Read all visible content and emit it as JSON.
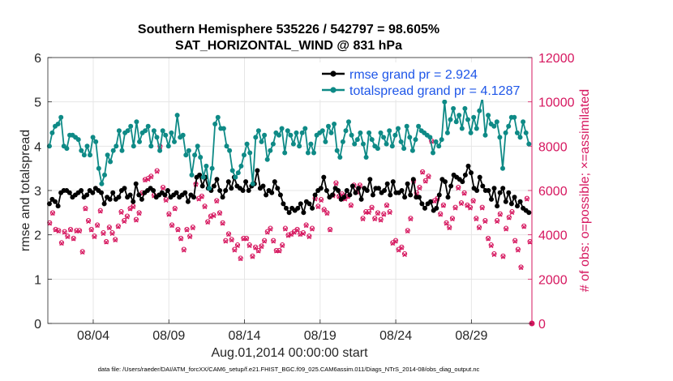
{
  "chart_data": {
    "type": "line",
    "title": "Southern Hemisphere 535226 / 542797 = 98.605%",
    "subtitle": "SAT_HORIZONTAL_WIND @ 831 hPa",
    "xlabel": "Aug.01,2014 00:00:00 start",
    "ylabel": "rmse and totalspread",
    "ylabel_right": "# of obs: o=possible; ×=assimilated",
    "xlim": [
      0,
      32
    ],
    "ylim": [
      0,
      6
    ],
    "ylim_right": [
      0,
      12000
    ],
    "xticks": [
      3,
      8,
      13,
      18,
      23,
      28
    ],
    "xtick_labels": [
      "08/04",
      "08/09",
      "08/14",
      "08/19",
      "08/24",
      "08/29"
    ],
    "yticks": [
      "0",
      "1",
      "2",
      "3",
      "4",
      "5",
      "6"
    ],
    "yticks_right": [
      "0",
      "2000",
      "4000",
      "6000",
      "8000",
      "10000",
      "12000"
    ],
    "footnote": "data file: /Users/raeder/DAI/ATM_forcXX/CAM6_setup/f.e21.FHIST_BGC.f09_025.CAM6assim.011/Diags_NTrS_2014-08/obs_diag_output.nc",
    "legend_position": "top-right",
    "series": [
      {
        "name": "rmse grand pr = 2.924",
        "color": "#000000",
        "values": [
          2.7,
          2.8,
          2.75,
          2.65,
          2.95,
          3.0,
          3.0,
          2.95,
          2.85,
          2.9,
          2.95,
          3.0,
          2.85,
          2.9,
          3.0,
          2.95,
          3.05,
          3.0,
          2.95,
          2.7,
          2.85,
          2.8,
          2.95,
          2.8,
          2.85,
          3.0,
          3.05,
          2.85,
          2.9,
          2.75,
          3.15,
          2.9,
          2.8,
          2.95,
          3.0,
          3.05,
          3.0,
          2.85,
          2.9,
          2.95,
          2.9,
          3.0,
          2.85,
          2.9,
          2.95,
          2.85,
          2.9,
          2.95,
          2.75,
          2.9,
          2.85,
          3.3,
          3.35,
          3.1,
          3.3,
          3.05,
          3.0,
          3.1,
          3.25,
          3.0,
          2.85,
          3.0,
          3.2,
          3.05,
          3.3,
          3.1,
          3.05,
          3.0,
          3.2,
          3.0,
          3.1,
          3.15,
          3.45,
          3.05,
          3.1,
          2.9,
          3.0,
          2.95,
          3.2,
          3.05,
          2.9,
          2.7,
          2.6,
          2.5,
          2.6,
          2.55,
          2.6,
          2.7,
          2.5,
          2.75,
          2.7,
          2.6,
          2.9,
          3.0,
          3.05,
          3.3,
          3.0,
          2.85,
          2.9,
          3.05,
          3.0,
          2.8,
          2.85,
          3.0,
          2.9,
          3.1,
          2.95,
          3.05,
          2.8,
          3.05,
          3.0,
          3.25,
          2.9,
          3.05,
          3.05,
          2.95,
          3.0,
          3.15,
          2.9,
          3.2,
          2.95,
          2.95,
          3.0,
          2.85,
          3.15,
          2.9,
          3.25,
          2.85,
          2.85,
          2.7,
          2.6,
          2.7,
          2.75,
          2.55,
          2.6,
          2.9,
          3.25,
          3.2,
          2.85,
          3.1,
          3.35,
          3.3,
          3.25,
          3.2,
          3.35,
          3.55,
          3.4,
          3.05,
          3.0,
          3.3,
          3.1,
          3.0,
          3.0,
          2.8,
          3.05,
          2.65,
          2.95,
          3.05,
          2.75,
          2.95,
          2.7,
          2.85,
          2.65,
          2.75,
          2.6,
          2.55,
          2.5
        ]
      },
      {
        "name": "totalspread grand pr = 4.1287",
        "color": "#0e8a86",
        "values": [
          4.0,
          4.3,
          4.45,
          4.5,
          4.65,
          4.0,
          3.95,
          4.25,
          4.25,
          4.2,
          4.15,
          3.9,
          3.8,
          4.0,
          3.8,
          4.2,
          4.1,
          3.5,
          3.15,
          3.35,
          3.8,
          3.65,
          3.9,
          4.0,
          4.35,
          3.9,
          4.3,
          4.35,
          4.45,
          4.0,
          4.55,
          4.1,
          4.3,
          4.35,
          4.45,
          4.0,
          4.35,
          4.2,
          3.9,
          4.35,
          4.25,
          4.0,
          4.3,
          4.1,
          4.7,
          4.2,
          4.25,
          3.8,
          3.9,
          3.35,
          3.8,
          4.0,
          3.75,
          3.3,
          3.55,
          3.05,
          3.5,
          4.5,
          4.65,
          4.4,
          4.4,
          4.0,
          3.9,
          3.45,
          3.3,
          3.4,
          3.55,
          3.8,
          4.05,
          3.85,
          3.15,
          4.2,
          4.35,
          4.1,
          4.25,
          3.7,
          3.9,
          4.05,
          4.3,
          4.25,
          4.4,
          3.85,
          4.35,
          4.25,
          4.05,
          4.3,
          4.0,
          4.3,
          4.4,
          3.85,
          4.05,
          3.85,
          4.25,
          4.3,
          4.35,
          4.1,
          4.45,
          4.3,
          4.5,
          3.9,
          3.75,
          4.1,
          4.35,
          4.55,
          4.25,
          4.05,
          4.15,
          4.3,
          4.05,
          3.75,
          4.3,
          4.15,
          4.0,
          3.95,
          4.3,
          4.2,
          4.05,
          4.35,
          4.0,
          4.25,
          4.4,
          4.1,
          3.95,
          4.45,
          4.2,
          3.9,
          4.15,
          4.45,
          4.35,
          4.3,
          4.25,
          4.2,
          3.85,
          4.1,
          4.0,
          4.15,
          5.0,
          4.3,
          4.6,
          4.85,
          4.55,
          4.7,
          4.4,
          4.85,
          4.6,
          4.3,
          4.65,
          4.4,
          4.8,
          5.1,
          4.25,
          4.7,
          4.5,
          4.45,
          4.55,
          4.2,
          3.5,
          4.3,
          4.45,
          4.65,
          4.65,
          4.3,
          4.2,
          4.55,
          4.3,
          4.05
        ]
      }
    ],
    "obs_count_points": {
      "marker": "×",
      "color": "#d6175f",
      "values": [
        4500,
        4950,
        4200,
        4150,
        3600,
        4100,
        3900,
        4200,
        3800,
        4150,
        4150,
        3200,
        5150,
        4600,
        4200,
        3900,
        4400,
        5050,
        4050,
        3650,
        4300,
        4050,
        3750,
        4350,
        5000,
        4600,
        4800,
        5150,
        5250,
        4650,
        4950,
        5850,
        6450,
        6500,
        6600,
        5750,
        6850,
        7950,
        6100,
        5550,
        4900,
        4400,
        5150,
        4200,
        3800,
        3300,
        4200,
        3900,
        4300,
        6250,
        5600,
        5700,
        5250,
        4550,
        4800,
        4850,
        5500,
        4950,
        4500,
        3700,
        4000,
        3750,
        3300,
        3500,
        2900,
        3800,
        3800,
        3500,
        3000,
        3400,
        3250,
        3450,
        3700,
        4100,
        4250,
        3700,
        3250,
        3250,
        3500,
        4250,
        3950,
        4000,
        4100,
        4200,
        4000,
        4050,
        4400,
        3900,
        4250,
        5600,
        5250,
        5550,
        5100,
        4950,
        4200,
        5750,
        6300,
        5700,
        5800,
        5600,
        5700,
        5300,
        6200,
        5900,
        6200,
        4700,
        5000,
        5000,
        5200,
        4700,
        4950,
        4650,
        4900,
        5300,
        5000,
        3600,
        3700,
        3300,
        3400,
        3100,
        4150,
        4700,
        6400,
        5850,
        6100,
        6800,
        6400,
        6600,
        8200,
        5500,
        5600,
        4900,
        5300,
        4500,
        4300,
        4700,
        5200,
        6100,
        5400,
        5850,
        5300,
        5200,
        5500,
        4700,
        4300,
        5200,
        4600,
        3800,
        3500,
        3100,
        4600,
        4900,
        3000,
        4250,
        4750,
        5000,
        3700,
        3300,
        2500,
        4350,
        5600,
        3650
      ]
    }
  }
}
